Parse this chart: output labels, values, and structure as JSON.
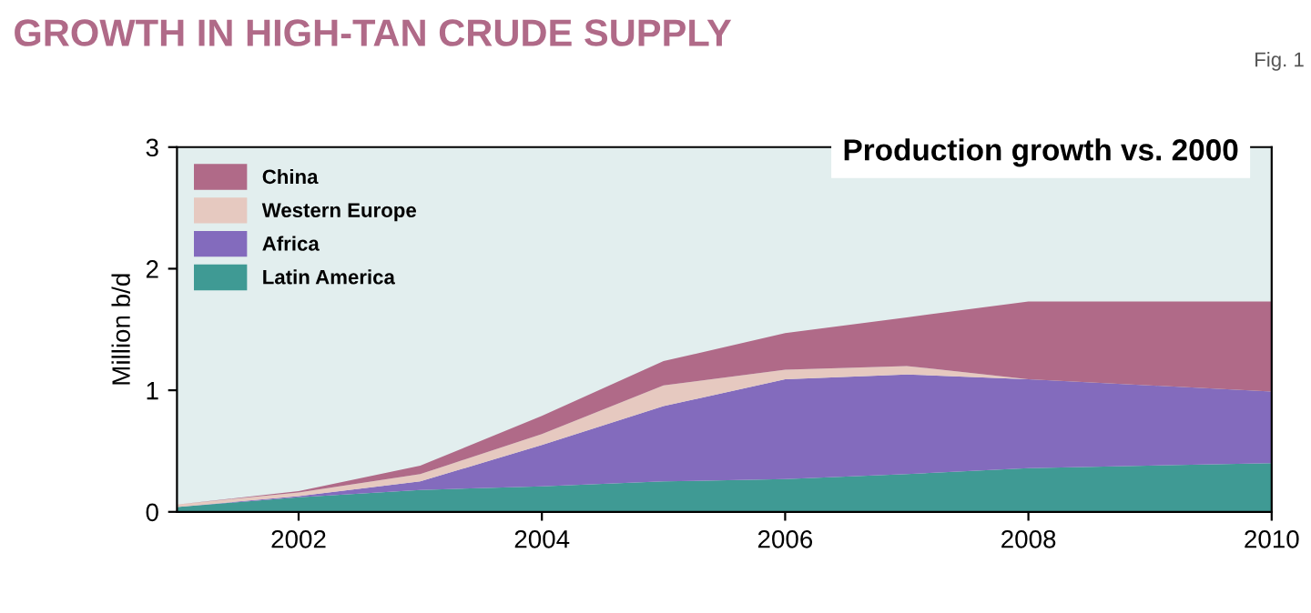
{
  "chart_data": {
    "type": "area",
    "stacked": true,
    "title": "GROWTH IN HIGH-TAN CRUDE SUPPLY",
    "subtitle": "Production growth vs. 2000",
    "ylabel": "Million b/d",
    "annotations": [
      "Fig. 1"
    ],
    "x": [
      2001,
      2002,
      2003,
      2004,
      2005,
      2006,
      2007,
      2008,
      2010
    ],
    "series": [
      {
        "name": "Latin America",
        "color": "#3f9a94",
        "values": [
          0.04,
          0.12,
          0.18,
          0.21,
          0.25,
          0.27,
          0.31,
          0.36,
          0.4
        ]
      },
      {
        "name": "Africa",
        "color": "#836bbd",
        "values": [
          0,
          0.01,
          0.07,
          0.34,
          0.62,
          0.82,
          0.82,
          0.73,
          0.59
        ]
      },
      {
        "name": "Western Europe",
        "color": "#e6c9c0",
        "values": [
          0.02,
          0.03,
          0.06,
          0.09,
          0.17,
          0.08,
          0.07,
          0,
          0
        ]
      },
      {
        "name": "China",
        "color": "#b06a88",
        "values": [
          0,
          0.01,
          0.07,
          0.15,
          0.2,
          0.3,
          0.4,
          0.64,
          0.74
        ]
      }
    ],
    "xlim": [
      2001,
      2010
    ],
    "ylim": [
      0,
      3
    ],
    "xticks": [
      2002,
      2004,
      2006,
      2008,
      2010
    ],
    "yticks": [
      0,
      1,
      2,
      3
    ],
    "legend": "top left",
    "grid": false
  }
}
